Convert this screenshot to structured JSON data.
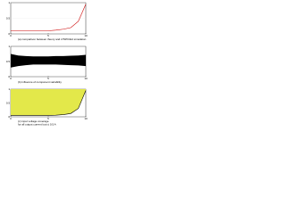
{
  "chart_data": [
    {
      "type": "line",
      "caption": [
        "(a) comparison between theory and LTSPICE4 simulation"
      ],
      "x": [
        0,
        1,
        2,
        3,
        4,
        5,
        6,
        7,
        8,
        9,
        10
      ],
      "values": [
        0.1,
        0.1,
        0.1,
        0.1,
        0.1,
        0.1,
        0.12,
        0.15,
        0.2,
        0.4,
        0.95
      ],
      "xlim": [
        0,
        10
      ],
      "ylim": [
        0,
        1
      ],
      "xticks": [
        0,
        5,
        10
      ],
      "yticks": [
        0,
        0.5,
        1
      ],
      "color": "#cc0000"
    },
    {
      "type": "band",
      "caption": [
        "(b) influence of component variability"
      ],
      "x": [
        0,
        1,
        2,
        3,
        4,
        5,
        6,
        7,
        8,
        9,
        10
      ],
      "upper": [
        0.75,
        0.7,
        0.68,
        0.67,
        0.67,
        0.67,
        0.68,
        0.68,
        0.69,
        0.7,
        0.72
      ],
      "lower": [
        0.3,
        0.35,
        0.38,
        0.4,
        0.4,
        0.4,
        0.4,
        0.39,
        0.38,
        0.37,
        0.35
      ],
      "xlim": [
        0,
        10
      ],
      "ylim": [
        0,
        1
      ],
      "xticks": [
        0,
        5,
        10
      ],
      "yticks": [
        0,
        0.5,
        1
      ],
      "color": "#000000"
    },
    {
      "type": "area",
      "caption": [
        "(c) input voltage coverage",
        "for all output current Iout ≤ 0.5 A"
      ],
      "x": [
        0,
        1,
        2,
        3,
        4,
        5,
        6,
        7,
        8,
        9,
        10
      ],
      "values": [
        0.05,
        0.05,
        0.05,
        0.05,
        0.05,
        0.05,
        0.06,
        0.08,
        0.12,
        0.3,
        0.95
      ],
      "xlim": [
        0,
        10
      ],
      "ylim": [
        0,
        1
      ],
      "xticks": [
        0,
        5,
        10
      ],
      "yticks": [
        0,
        0.5,
        1
      ],
      "color": "#000000",
      "fill": "#e3e84a"
    }
  ]
}
